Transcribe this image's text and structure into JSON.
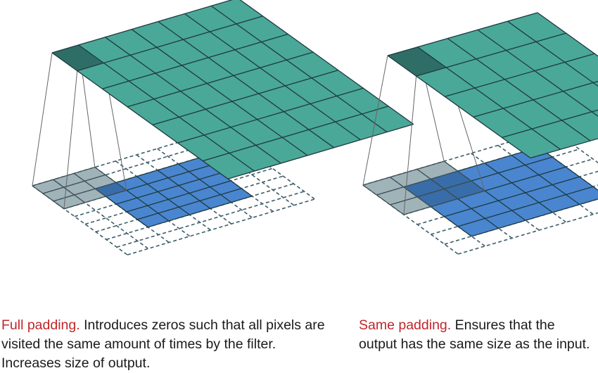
{
  "panels": [
    {
      "id": "full",
      "title": "Full padding.",
      "description": "Introduces zeros such that all pixels are visited the same amount of times by the filter. Increases size of output."
    },
    {
      "id": "same",
      "title": "Same padding.",
      "description": "Ensures that the output has the same size as the input."
    }
  ],
  "colors": {
    "output_fill": "#4aa898",
    "output_highlight": "#2f6e66",
    "input_fill": "#4a86cf",
    "kernel_fill": "#8fa6ad",
    "padding_line": "#3e5d6a",
    "grid_line": "#1e3a40",
    "connector": "#666666",
    "title_text": "#c0262a"
  }
}
